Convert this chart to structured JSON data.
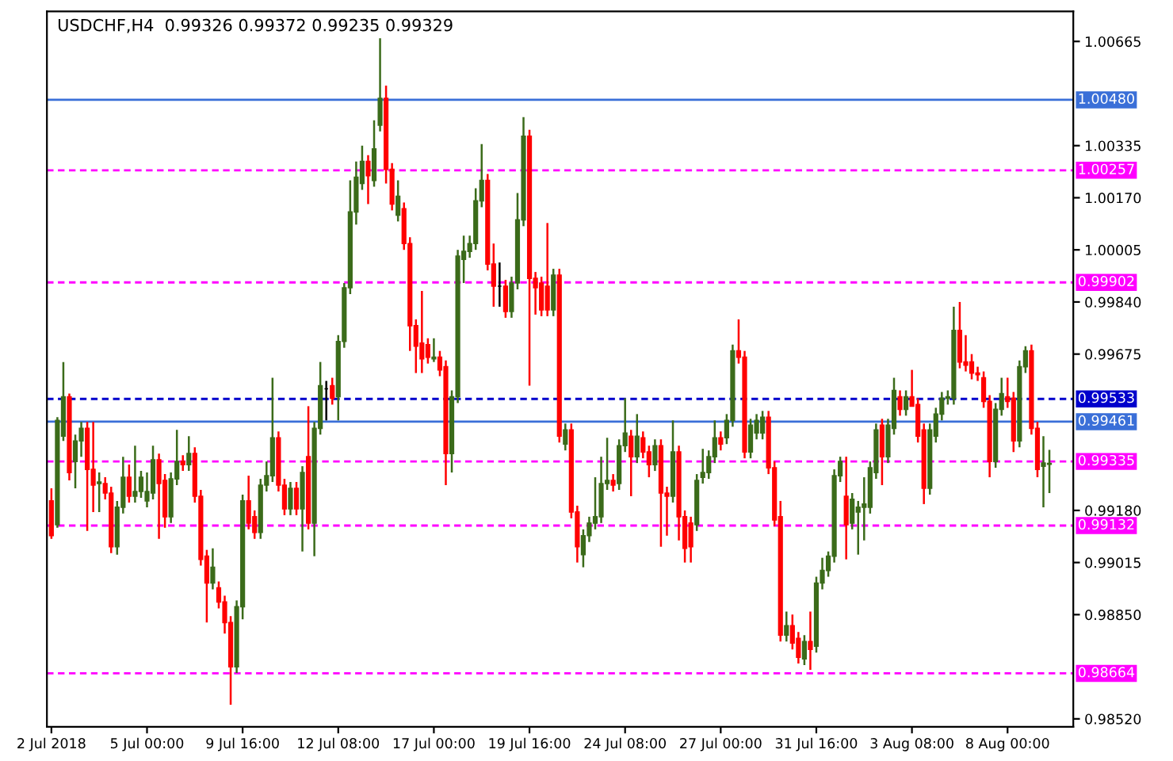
{
  "chart_data": {
    "type": "candlestick",
    "title": "USDCHF,H4  0.99326 0.99372 0.99235 0.99329",
    "categories": [
      "2 Jul 2018",
      null,
      null,
      null,
      null,
      null,
      null,
      null,
      null,
      null,
      null,
      null,
      null,
      null,
      null,
      null,
      "5 Jul 00:00",
      null,
      null,
      null,
      null,
      null,
      null,
      null,
      null,
      null,
      null,
      null,
      null,
      null,
      null,
      null,
      "9 Jul 16:00",
      null,
      null,
      null,
      null,
      null,
      null,
      null,
      null,
      null,
      null,
      null,
      null,
      null,
      null,
      null,
      "12 Jul 08:00",
      null,
      null,
      null,
      null,
      null,
      null,
      null,
      null,
      null,
      null,
      null,
      null,
      null,
      null,
      null,
      "17 Jul 00:00",
      null,
      null,
      null,
      null,
      null,
      null,
      null,
      null,
      null,
      null,
      null,
      null,
      null,
      null,
      null,
      "19 Jul 16:00",
      null,
      null,
      null,
      null,
      null,
      null,
      null,
      null,
      null,
      null,
      null,
      null,
      null,
      null,
      null,
      "24 Jul 08:00",
      null,
      null,
      null,
      null,
      null,
      null,
      null,
      null,
      null,
      null,
      null,
      null,
      null,
      null,
      null,
      "27 Jul 00:00",
      null,
      null,
      null,
      null,
      null,
      null,
      null,
      null,
      null,
      null,
      null,
      null,
      null,
      null,
      null,
      "31 Jul 16:00",
      null,
      null,
      null,
      null,
      null,
      null,
      null,
      null,
      null,
      null,
      null,
      null,
      null,
      null,
      null,
      "3 Aug 08:00",
      null,
      null,
      null,
      null,
      null,
      null,
      null,
      null,
      null,
      null,
      null,
      null,
      null,
      null,
      null,
      "8 Aug 00:00",
      null,
      null,
      null,
      null,
      null,
      null,
      null
    ],
    "ohlc": [
      [
        0.9921,
        0.9925,
        0.9909,
        0.991
      ],
      [
        0.99135,
        0.99475,
        0.99125,
        0.99465
      ],
      [
        0.99415,
        0.9965,
        0.994,
        0.9954
      ],
      [
        0.9954,
        0.9955,
        0.99275,
        0.993
      ],
      [
        0.99335,
        0.9942,
        0.9925,
        0.994
      ],
      [
        0.994,
        0.9946,
        0.9935,
        0.9944
      ],
      [
        0.9944,
        0.9946,
        0.99115,
        0.9931
      ],
      [
        0.9931,
        0.9946,
        0.99175,
        0.9926
      ],
      [
        0.99265,
        0.993,
        0.99175,
        0.9927
      ],
      [
        0.99265,
        0.99285,
        0.99215,
        0.99235
      ],
      [
        0.99235,
        0.99255,
        0.99045,
        0.99065
      ],
      [
        0.99065,
        0.9921,
        0.9904,
        0.9919
      ],
      [
        0.9919,
        0.9935,
        0.9917,
        0.99285
      ],
      [
        0.99285,
        0.99325,
        0.99205,
        0.99225
      ],
      [
        0.99225,
        0.99385,
        0.99205,
        0.9924
      ],
      [
        0.9924,
        0.99305,
        0.9922,
        0.99285
      ],
      [
        0.9921,
        0.993,
        0.9919,
        0.9924
      ],
      [
        0.99235,
        0.99385,
        0.99215,
        0.9934
      ],
      [
        0.9934,
        0.9936,
        0.9909,
        0.99265
      ],
      [
        0.99275,
        0.99295,
        0.99125,
        0.9916
      ],
      [
        0.9916,
        0.993,
        0.9914,
        0.9928
      ],
      [
        0.9928,
        0.99435,
        0.9926,
        0.99335
      ],
      [
        0.99335,
        0.99355,
        0.99305,
        0.99325
      ],
      [
        0.99325,
        0.99415,
        0.99305,
        0.9936
      ],
      [
        0.9936,
        0.9938,
        0.99205,
        0.99225
      ],
      [
        0.99225,
        0.99245,
        0.99005,
        0.99025
      ],
      [
        0.99035,
        0.99055,
        0.98825,
        0.9895
      ],
      [
        0.9895,
        0.9906,
        0.9893,
        0.99
      ],
      [
        0.98935,
        0.98955,
        0.9887,
        0.9889
      ],
      [
        0.9889,
        0.9891,
        0.9879,
        0.98825
      ],
      [
        0.98825,
        0.98845,
        0.98565,
        0.98685
      ],
      [
        0.98685,
        0.98895,
        0.98665,
        0.98875
      ],
      [
        0.98875,
        0.9923,
        0.98835,
        0.9921
      ],
      [
        0.9921,
        0.9929,
        0.9912,
        0.9914
      ],
      [
        0.9916,
        0.9918,
        0.9909,
        0.9911
      ],
      [
        0.9911,
        0.9928,
        0.9909,
        0.9926
      ],
      [
        0.9926,
        0.99335,
        0.9924,
        0.9929
      ],
      [
        0.9929,
        0.996,
        0.9927,
        0.9941
      ],
      [
        0.9941,
        0.9943,
        0.9924,
        0.9926
      ],
      [
        0.9926,
        0.9928,
        0.99165,
        0.99185
      ],
      [
        0.99185,
        0.9927,
        0.99165,
        0.9925
      ],
      [
        0.9925,
        0.9927,
        0.99165,
        0.99185
      ],
      [
        0.99185,
        0.9932,
        0.9905,
        0.993
      ],
      [
        0.9935,
        0.9951,
        0.9912,
        0.9914
      ],
      [
        0.9914,
        0.9946,
        0.99035,
        0.9944
      ],
      [
        0.9944,
        0.9965,
        0.9942,
        0.99575
      ],
      [
        0.99565,
        0.9959,
        0.99465,
        0.99565
      ],
      [
        0.99575,
        0.996,
        0.99515,
        0.99535
      ],
      [
        0.9954,
        0.99735,
        0.99465,
        0.99715
      ],
      [
        0.99715,
        0.999,
        0.99695,
        0.99885
      ],
      [
        0.99885,
        1.00225,
        0.99865,
        1.00125
      ],
      [
        1.00125,
        1.00285,
        1.00085,
        1.00235
      ],
      [
        1.00215,
        1.00335,
        1.00195,
        1.00285
      ],
      [
        1.00285,
        1.00305,
        1.0015,
        1.0024
      ],
      [
        1.00225,
        1.00415,
        1.00205,
        1.00325
      ],
      [
        1.004,
        1.00675,
        1.0038,
        1.00485
      ],
      [
        1.00485,
        1.00525,
        1.00215,
        1.0026
      ],
      [
        1.0026,
        1.0028,
        1.0013,
        1.0015
      ],
      [
        1.00115,
        1.00225,
        1.00095,
        1.00175
      ],
      [
        1.00135,
        1.00155,
        1.00005,
        1.00025
      ],
      [
        1.00025,
        1.00045,
        0.99685,
        0.99765
      ],
      [
        0.99765,
        0.99785,
        0.99615,
        0.997
      ],
      [
        0.9971,
        0.99875,
        0.99615,
        0.9966
      ],
      [
        0.99705,
        0.99725,
        0.99645,
        0.99665
      ],
      [
        0.9966,
        0.99725,
        0.9965,
        0.99665
      ],
      [
        0.99665,
        0.99685,
        0.99605,
        0.99625
      ],
      [
        0.99635,
        0.99655,
        0.9926,
        0.9936
      ],
      [
        0.9936,
        0.9956,
        0.993,
        0.9954
      ],
      [
        0.9954,
        1.00005,
        0.9952,
        0.99985
      ],
      [
        0.99975,
        1.0005,
        0.999,
        1.0
      ],
      [
        1.0,
        1.0005,
        0.9998,
        1.00025
      ],
      [
        1.00025,
        1.002,
        1.00005,
        1.0016
      ],
      [
        1.0016,
        1.0034,
        1.0014,
        1.00225
      ],
      [
        1.00225,
        1.00245,
        0.9994,
        0.9996
      ],
      [
        0.9996,
        1.00025,
        0.99825,
        0.9989
      ],
      [
        0.9989,
        0.99965,
        0.99825,
        0.9989
      ],
      [
        0.9989,
        0.9991,
        0.9979,
        0.9981
      ],
      [
        0.9981,
        0.9992,
        0.9979,
        0.999
      ],
      [
        0.999,
        1.00185,
        0.9988,
        1.001
      ],
      [
        1.001,
        1.00425,
        1.0008,
        1.00365
      ],
      [
        1.00365,
        1.00385,
        0.99575,
        0.99915
      ],
      [
        0.99915,
        0.99935,
        0.998,
        0.99885
      ],
      [
        0.999,
        0.9992,
        0.99795,
        0.99815
      ],
      [
        0.9989,
        1.0009,
        0.99795,
        0.99815
      ],
      [
        0.99815,
        0.99945,
        0.99795,
        0.99925
      ],
      [
        0.99925,
        0.99945,
        0.99395,
        0.99415
      ],
      [
        0.9939,
        0.99455,
        0.9937,
        0.99435
      ],
      [
        0.99435,
        0.99455,
        0.99155,
        0.99175
      ],
      [
        0.99175,
        0.99195,
        0.99015,
        0.99065
      ],
      [
        0.9904,
        0.9912,
        0.99,
        0.991
      ],
      [
        0.991,
        0.9916,
        0.9908,
        0.9914
      ],
      [
        0.9914,
        0.99285,
        0.9912,
        0.9916
      ],
      [
        0.9916,
        0.9935,
        0.9914,
        0.99265
      ],
      [
        0.99265,
        0.9941,
        0.99245,
        0.99275
      ],
      [
        0.99275,
        0.99295,
        0.9924,
        0.9926
      ],
      [
        0.99265,
        0.99405,
        0.99245,
        0.99385
      ],
      [
        0.99385,
        0.99535,
        0.99365,
        0.99425
      ],
      [
        0.99415,
        0.99435,
        0.99225,
        0.9935
      ],
      [
        0.9935,
        0.99485,
        0.9933,
        0.99415
      ],
      [
        0.9941,
        0.9943,
        0.99345,
        0.99365
      ],
      [
        0.99365,
        0.99385,
        0.99285,
        0.99325
      ],
      [
        0.99325,
        0.99405,
        0.99305,
        0.99385
      ],
      [
        0.99385,
        0.99405,
        0.99065,
        0.99235
      ],
      [
        0.99235,
        0.99255,
        0.991,
        0.99225
      ],
      [
        0.99225,
        0.99465,
        0.99205,
        0.99365
      ],
      [
        0.99365,
        0.99385,
        0.99085,
        0.9916
      ],
      [
        0.9916,
        0.9918,
        0.99015,
        0.9906
      ],
      [
        0.9914,
        0.9916,
        0.99015,
        0.99065
      ],
      [
        0.99135,
        0.99295,
        0.99115,
        0.99275
      ],
      [
        0.99285,
        0.99375,
        0.99265,
        0.993
      ],
      [
        0.993,
        0.9937,
        0.9928,
        0.9935
      ],
      [
        0.9935,
        0.99465,
        0.9933,
        0.9941
      ],
      [
        0.9941,
        0.9943,
        0.9937,
        0.9939
      ],
      [
        0.9941,
        0.99485,
        0.9939,
        0.99465
      ],
      [
        0.99465,
        0.99705,
        0.99445,
        0.99685
      ],
      [
        0.99685,
        0.99785,
        0.99645,
        0.99665
      ],
      [
        0.99665,
        0.99685,
        0.99345,
        0.99365
      ],
      [
        0.99365,
        0.9947,
        0.99345,
        0.9945
      ],
      [
        0.99425,
        0.99485,
        0.99405,
        0.99465
      ],
      [
        0.99425,
        0.99495,
        0.99405,
        0.99475
      ],
      [
        0.99475,
        0.99495,
        0.99295,
        0.99315
      ],
      [
        0.99315,
        0.99335,
        0.9913,
        0.9915
      ],
      [
        0.9916,
        0.9921,
        0.98765,
        0.98785
      ],
      [
        0.98785,
        0.9886,
        0.98765,
        0.98815
      ],
      [
        0.98815,
        0.9885,
        0.9874,
        0.9876
      ],
      [
        0.98775,
        0.98795,
        0.98695,
        0.98715
      ],
      [
        0.9871,
        0.98785,
        0.9869,
        0.98765
      ],
      [
        0.98765,
        0.9886,
        0.98675,
        0.9874
      ],
      [
        0.9875,
        0.9897,
        0.9873,
        0.9895
      ],
      [
        0.9895,
        0.9903,
        0.9893,
        0.9899
      ],
      [
        0.9899,
        0.9905,
        0.9897,
        0.99035
      ],
      [
        0.99035,
        0.9931,
        0.99015,
        0.9929
      ],
      [
        0.9929,
        0.9935,
        0.9927,
        0.99335
      ],
      [
        0.99225,
        0.9935,
        0.99025,
        0.99135
      ],
      [
        0.9914,
        0.99235,
        0.9912,
        0.99215
      ],
      [
        0.99175,
        0.9921,
        0.9904,
        0.9919
      ],
      [
        0.9919,
        0.99285,
        0.99085,
        0.992
      ],
      [
        0.9919,
        0.99335,
        0.9917,
        0.99315
      ],
      [
        0.993,
        0.99455,
        0.9928,
        0.99435
      ],
      [
        0.9945,
        0.9947,
        0.9926,
        0.9935
      ],
      [
        0.9935,
        0.9947,
        0.9933,
        0.9945
      ],
      [
        0.9944,
        0.996,
        0.9942,
        0.9956
      ],
      [
        0.9954,
        0.9956,
        0.9948,
        0.995
      ],
      [
        0.995,
        0.9956,
        0.9948,
        0.9954
      ],
      [
        0.9954,
        0.99625,
        0.9951,
        0.9951
      ],
      [
        0.99515,
        0.99535,
        0.99395,
        0.99415
      ],
      [
        0.99435,
        0.99455,
        0.992,
        0.9925
      ],
      [
        0.9925,
        0.99455,
        0.9923,
        0.99435
      ],
      [
        0.99415,
        0.99505,
        0.99395,
        0.99485
      ],
      [
        0.99485,
        0.99555,
        0.99465,
        0.99535
      ],
      [
        0.99535,
        0.9956,
        0.99515,
        0.9954
      ],
      [
        0.99535,
        0.99825,
        0.99515,
        0.9975
      ],
      [
        0.9975,
        0.9984,
        0.9963,
        0.9965
      ],
      [
        0.9965,
        0.99735,
        0.9962,
        0.9964
      ],
      [
        0.9965,
        0.99675,
        0.99595,
        0.99615
      ],
      [
        0.99615,
        0.99635,
        0.9959,
        0.9961
      ],
      [
        0.996,
        0.9962,
        0.99505,
        0.99525
      ],
      [
        0.99525,
        0.99545,
        0.99285,
        0.99335
      ],
      [
        0.99335,
        0.9952,
        0.99315,
        0.995
      ],
      [
        0.995,
        0.996,
        0.9948,
        0.9955
      ],
      [
        0.9954,
        0.996,
        0.99505,
        0.99525
      ],
      [
        0.99535,
        0.99555,
        0.99365,
        0.994
      ],
      [
        0.994,
        0.99655,
        0.9938,
        0.99635
      ],
      [
        0.99635,
        0.997,
        0.99615,
        0.99685
      ],
      [
        0.99685,
        0.99705,
        0.9942,
        0.9944
      ],
      [
        0.9944,
        0.9946,
        0.99285,
        0.9931
      ],
      [
        0.9932,
        0.99415,
        0.9919,
        0.9933
      ],
      [
        0.99326,
        0.99372,
        0.99235,
        0.99329
      ]
    ],
    "colors": [
      "#ff0000",
      "#3b6b1a",
      "#3b6b1a",
      "#ff0000",
      "#3b6b1a",
      "#3b6b1a",
      "#ff0000",
      "#ff0000",
      "#3b6b1a",
      "#ff0000",
      "#ff0000",
      "#3b6b1a",
      "#3b6b1a",
      "#ff0000",
      "#3b6b1a",
      "#3b6b1a",
      "#3b6b1a",
      "#3b6b1a",
      "#ff0000",
      "#ff0000",
      "#3b6b1a",
      "#3b6b1a",
      "#ff0000",
      "#3b6b1a",
      "#ff0000",
      "#ff0000",
      "#ff0000",
      "#3b6b1a",
      "#ff0000",
      "#ff0000",
      "#ff0000",
      "#3b6b1a",
      "#3b6b1a",
      "#ff0000",
      "#ff0000",
      "#3b6b1a",
      "#3b6b1a",
      "#3b6b1a",
      "#ff0000",
      "#ff0000",
      "#3b6b1a",
      "#ff0000",
      "#3b6b1a",
      "#ff0000",
      "#3b6b1a",
      "#3b6b1a",
      "#000000",
      "#ff0000",
      "#3b6b1a",
      "#3b6b1a",
      "#3b6b1a",
      "#3b6b1a",
      "#3b6b1a",
      "#ff0000",
      "#3b6b1a",
      "#3b6b1a",
      "#ff0000",
      "#ff0000",
      "#3b6b1a",
      "#ff0000",
      "#ff0000",
      "#ff0000",
      "#ff0000",
      "#ff0000",
      "#3b6b1a",
      "#ff0000",
      "#ff0000",
      "#3b6b1a",
      "#3b6b1a",
      "#3b6b1a",
      "#3b6b1a",
      "#3b6b1a",
      "#3b6b1a",
      "#ff0000",
      "#ff0000",
      "#000000",
      "#ff0000",
      "#3b6b1a",
      "#3b6b1a",
      "#3b6b1a",
      "#ff0000",
      "#ff0000",
      "#ff0000",
      "#ff0000",
      "#3b6b1a",
      "#ff0000",
      "#3b6b1a",
      "#ff0000",
      "#ff0000",
      "#3b6b1a",
      "#3b6b1a",
      "#3b6b1a",
      "#3b6b1a",
      "#3b6b1a",
      "#ff0000",
      "#3b6b1a",
      "#3b6b1a",
      "#ff0000",
      "#3b6b1a",
      "#ff0000",
      "#ff0000",
      "#3b6b1a",
      "#ff0000",
      "#ff0000",
      "#3b6b1a",
      "#ff0000",
      "#ff0000",
      "#ff0000",
      "#3b6b1a",
      "#3b6b1a",
      "#3b6b1a",
      "#3b6b1a",
      "#ff0000",
      "#3b6b1a",
      "#3b6b1a",
      "#ff0000",
      "#ff0000",
      "#3b6b1a",
      "#3b6b1a",
      "#3b6b1a",
      "#ff0000",
      "#ff0000",
      "#ff0000",
      "#3b6b1a",
      "#ff0000",
      "#ff0000",
      "#3b6b1a",
      "#ff0000",
      "#3b6b1a",
      "#3b6b1a",
      "#3b6b1a",
      "#3b6b1a",
      "#3b6b1a",
      "#ff0000",
      "#3b6b1a",
      "#3b6b1a",
      "#3b6b1a",
      "#3b6b1a",
      "#3b6b1a",
      "#ff0000",
      "#3b6b1a",
      "#3b6b1a",
      "#ff0000",
      "#3b6b1a",
      "#ff0000",
      "#ff0000",
      "#ff0000",
      "#3b6b1a",
      "#3b6b1a",
      "#3b6b1a",
      "#3b6b1a",
      "#3b6b1a",
      "#ff0000",
      "#ff0000",
      "#ff0000",
      "#ff0000",
      "#ff0000",
      "#ff0000",
      "#3b6b1a",
      "#3b6b1a",
      "#ff0000",
      "#ff0000",
      "#3b6b1a",
      "#3b6b1a",
      "#ff0000",
      "#ff0000",
      "#3b6b1a",
      "#3b6b1a"
    ],
    "ylim": [
      0.98495,
      1.0076
    ],
    "yticks": [
      1.00665,
      1.00335,
      {
        "value": 1.0017,
        "label": "1.00170"
      },
      1.00005,
      {
        "value": 0.9984,
        "label": "0.99840"
      },
      0.99675,
      {
        "value": 0.9918,
        "label": "0.99180"
      },
      0.99015,
      {
        "value": 0.9885,
        "label": "0.98850"
      },
      {
        "value": 0.9852,
        "label": "0.98520"
      }
    ],
    "ref_lines": [
      {
        "axis": "y",
        "value": 1.0048,
        "label": "1.00480",
        "color": "#3a6fd8",
        "line_style": "solid"
      },
      {
        "axis": "y",
        "value": 1.00257,
        "label": "1.00257",
        "color": "#ff00ff",
        "line_style": "dashed"
      },
      {
        "axis": "y",
        "value": 0.99902,
        "label": "0.99902",
        "color": "#ff00ff",
        "line_style": "dashed"
      },
      {
        "axis": "y",
        "value": 0.99533,
        "label": "0.99533",
        "color": "#0000cc",
        "line_style": "dashed"
      },
      {
        "axis": "y",
        "value": 0.99461,
        "label": "0.99461",
        "color": "#3a6fd8",
        "line_style": "solid"
      },
      {
        "axis": "y",
        "value": 0.99335,
        "label": "0.99335",
        "color": "#ff00ff",
        "line_style": "dashed"
      },
      {
        "axis": "y",
        "value": 0.99132,
        "label": "0.99132",
        "color": "#ff00ff",
        "line_style": "dashed"
      },
      {
        "axis": "y",
        "value": 0.98664,
        "label": "0.98664",
        "color": "#ff00ff",
        "line_style": "dashed"
      }
    ],
    "grid": false
  }
}
